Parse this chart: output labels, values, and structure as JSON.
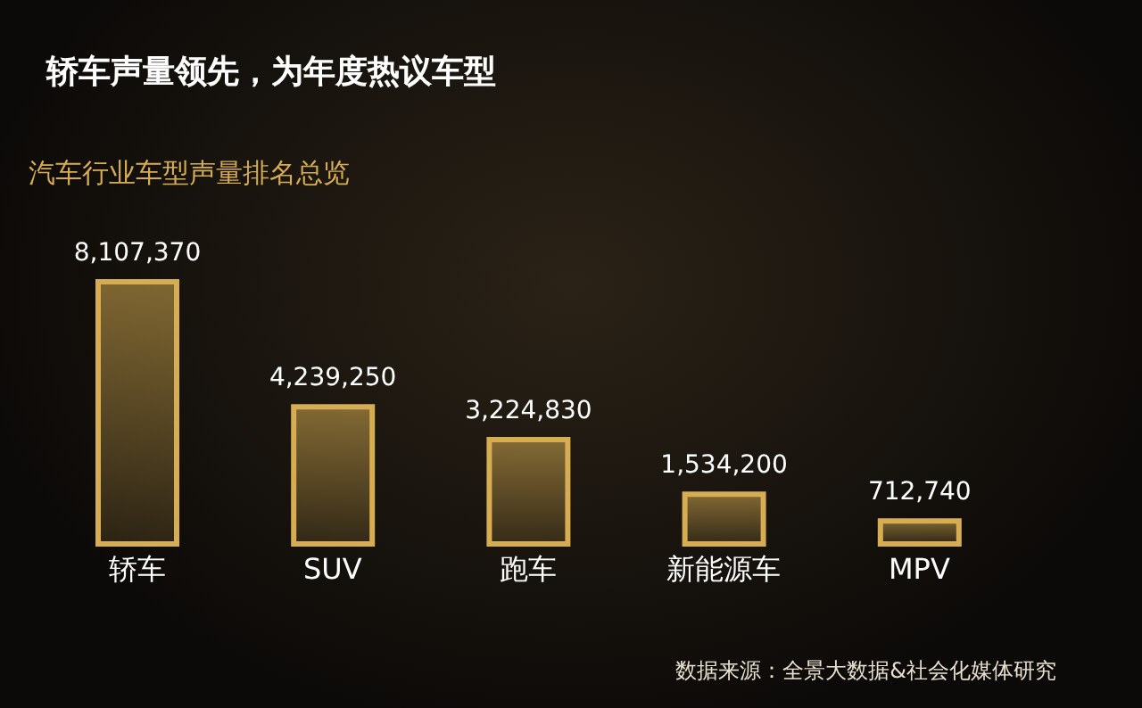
{
  "chart_data": {
    "type": "bar",
    "title": "轿车声量领先，为年度热议车型",
    "subtitle": "汽车行业车型声量排名总览",
    "categories": [
      "轿车",
      "SUV",
      "跑车",
      "新能源车",
      "MPV"
    ],
    "values": [
      8107370,
      4239250,
      3224830,
      1534200,
      712740
    ],
    "value_labels": [
      "8,107,370",
      "4,239,250",
      "3,224,830",
      "1,534,200",
      "712,740"
    ],
    "color": "#d6ad52",
    "grid": false,
    "annotations": [
      "数据来源：全景大数据&社会化媒体研究"
    ]
  }
}
